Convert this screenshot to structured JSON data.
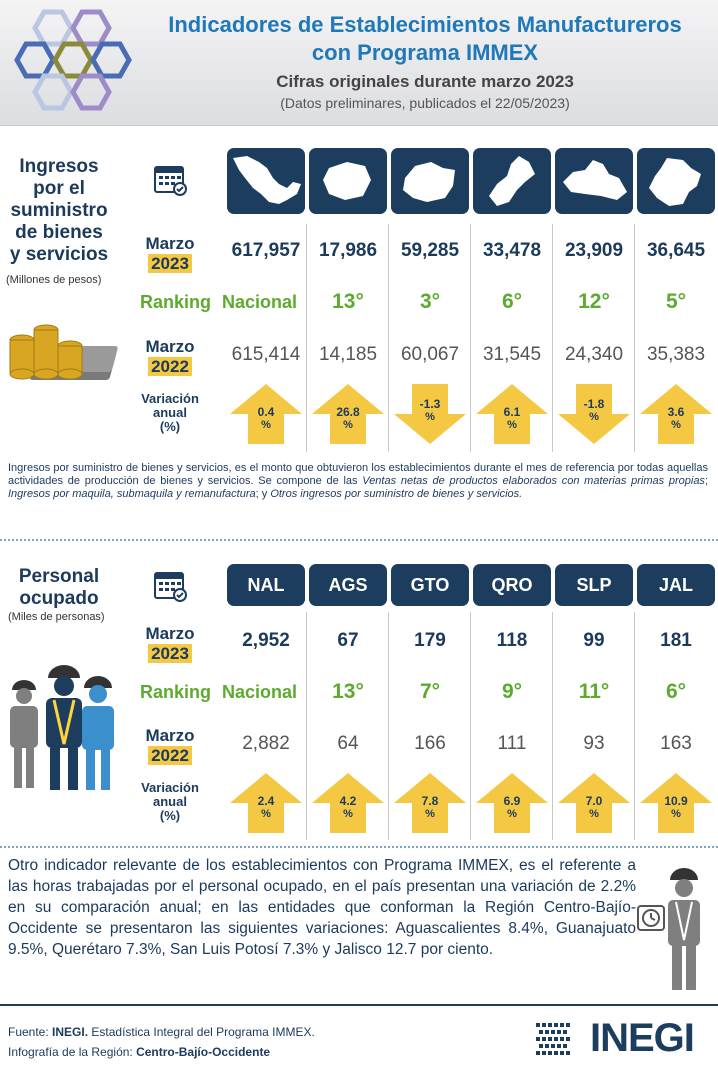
{
  "header": {
    "title_line1": "Indicadores de Establecimientos Manufactureros",
    "title_line2": "con Programa IMMEX",
    "subtitle": "Cifras originales durante marzo 2023",
    "note": "(Datos preliminares, publicados el 22/05/2023)"
  },
  "ingresos": {
    "title_lines": [
      "Ingresos",
      "por el",
      "suministro",
      "de bienes",
      "y servicios"
    ],
    "unit": "(Millones de pesos)",
    "row_marzo": "Marzo",
    "year_2023": "2023",
    "year_2022": "2022",
    "ranking_label": "Ranking",
    "ranking_nacional": "Nacional",
    "variacion_lines": [
      "Variación",
      "anual",
      "(%)"
    ],
    "values_2023": [
      "617,957",
      "17,986",
      "59,285",
      "33,478",
      "23,909",
      "36,645"
    ],
    "ranks": [
      "13°",
      "3°",
      "6°",
      "12°",
      "5°"
    ],
    "values_2022": [
      "615,414",
      "14,185",
      "60,067",
      "31,545",
      "24,340",
      "35,383"
    ],
    "variation": [
      0.4,
      26.8,
      -1.3,
      6.1,
      -1.8,
      3.6
    ],
    "variation_text": [
      "0.4",
      "26.8",
      "-1.3",
      "6.1",
      "-1.8",
      "3.6"
    ],
    "description_plain": "Ingresos por suministro de bienes y servicios, es el monto que obtuvieron los establecimientos durante el mes de referencia por todas aquellas actividades de producción de bienes y servicios. Se compone de las ",
    "description_it1": "Ventas netas de productos elaborados con materias primas propias",
    "description_sep1": "; ",
    "description_it2": "Ingresos por maquila, submaquila y remanufactura",
    "description_sep2": "; y ",
    "description_it3": "Otros ingresos por suministro de bienes y servicios."
  },
  "personal": {
    "title_lines": [
      "Personal",
      "ocupado"
    ],
    "unit": "(Miles de personas)",
    "columns": [
      "NAL",
      "AGS",
      "GTO",
      "QRO",
      "SLP",
      "JAL"
    ],
    "row_marzo": "Marzo",
    "year_2023": "2023",
    "year_2022": "2022",
    "ranking_label": "Ranking",
    "ranking_nacional": "Nacional",
    "variacion_lines": [
      "Variación",
      "anual",
      "(%)"
    ],
    "values_2023": [
      "2,952",
      "67",
      "179",
      "118",
      "99",
      "181"
    ],
    "ranks": [
      "13°",
      "7°",
      "9°",
      "11°",
      "6°"
    ],
    "values_2022": [
      "2,882",
      "64",
      "166",
      "111",
      "93",
      "163"
    ],
    "variation": [
      2.4,
      4.2,
      7.8,
      6.9,
      7.0,
      10.9
    ],
    "variation_text": [
      "2.4",
      "4.2",
      "7.8",
      "6.9",
      "7.0",
      "10.9"
    ]
  },
  "percent_sign": "%",
  "bottom_text": "Otro indicador relevante de los establecimientos con Programa IMMEX, es el referente a las horas trabajadas por el personal ocupado, en el país presentan una variación de 2.2% en su comparación anual; en las entidades que conforman la Región Centro-Bajío-Occidente se presentaron las siguientes variaciones: Aguascalientes 8.4%, Guanajuato 9.5%, Querétaro 7.3%, San Luis Potosí 7.3% y Jalisco 12.7 por ciento.",
  "footer": {
    "fuente_label": "Fuente: ",
    "fuente_org": "INEGI.",
    "fuente_text": " Estadística Integral del Programa IMMEX.",
    "infografia_label": "Infografía  de la Región: ",
    "region": "Centro-Bajío-Occidente",
    "logo_text": "INEGI"
  },
  "colors": {
    "navy": "#1c3d5e",
    "title_blue": "#1f78b8",
    "green": "#5cab2e",
    "year_highlight": "#f4c842",
    "arrow_yellow": "#f4c842"
  }
}
